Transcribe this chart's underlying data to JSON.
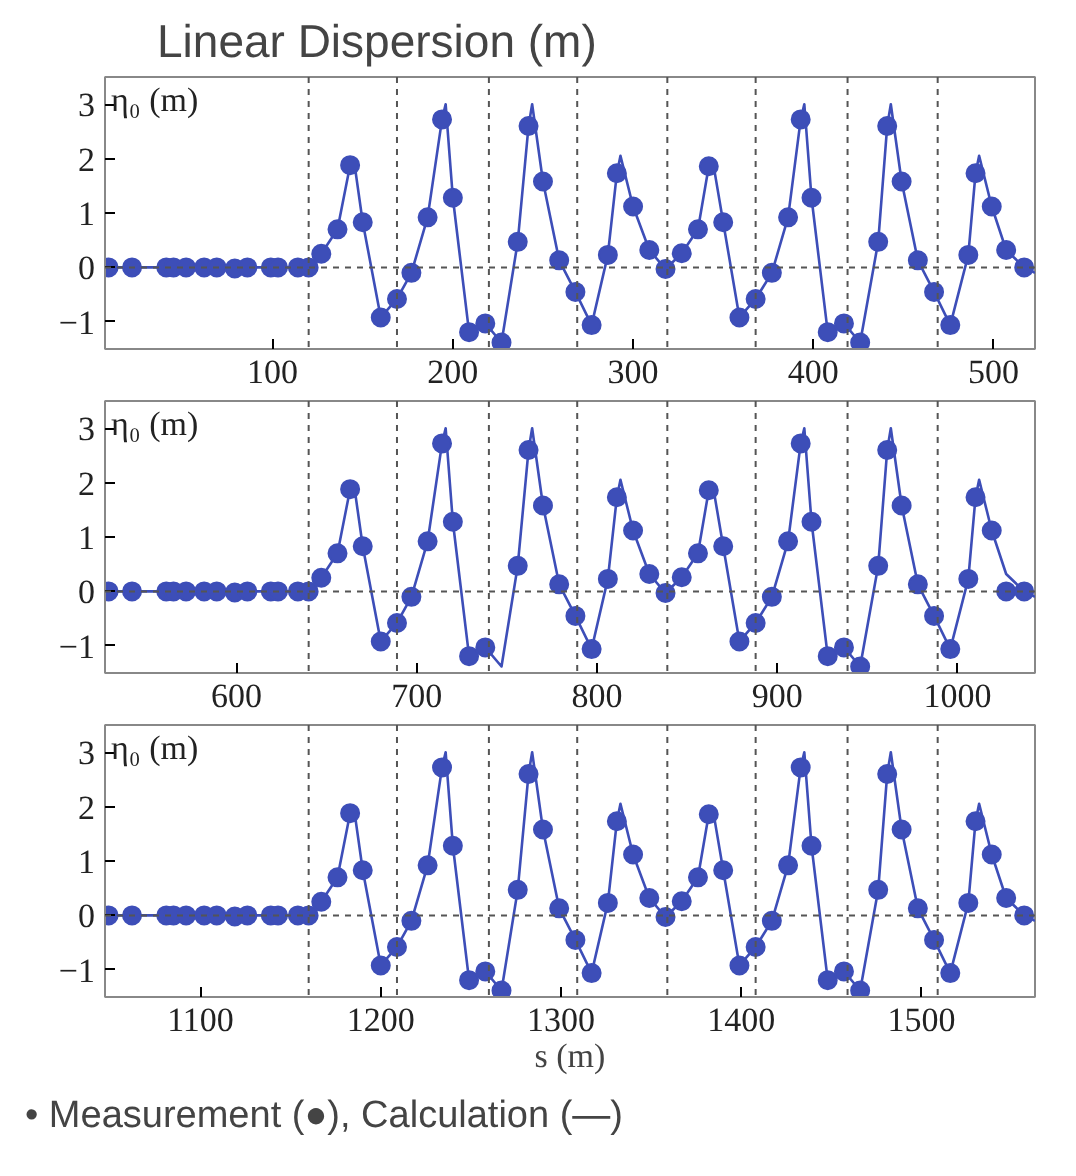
{
  "chart_data": [
    {
      "type": "scatter",
      "title": "Linear Dispersion (m)",
      "ylabel": "η₀ (m)",
      "xlim": [
        7,
        523
      ],
      "xticks": [
        100,
        200,
        300,
        400,
        500
      ],
      "ylim": [
        -1.5,
        3.5
      ],
      "yticks": [
        -1,
        0,
        1,
        2,
        3
      ],
      "ref_lines": [
        {
          "axis": "y",
          "value": 0,
          "line_style": "dashed",
          "color": "#555555"
        },
        {
          "axis": "x",
          "value": 120,
          "line_style": "dashed",
          "color": "#555555"
        },
        {
          "axis": "x",
          "value": 169,
          "line_style": "dashed",
          "color": "#555555"
        },
        {
          "axis": "x",
          "value": 220,
          "line_style": "dashed",
          "color": "#555555"
        },
        {
          "axis": "x",
          "value": 269,
          "line_style": "dashed",
          "color": "#555555"
        },
        {
          "axis": "x",
          "value": 319,
          "line_style": "dashed",
          "color": "#555555"
        },
        {
          "axis": "x",
          "value": 368,
          "line_style": "dashed",
          "color": "#555555"
        },
        {
          "axis": "x",
          "value": 419,
          "line_style": "dashed",
          "color": "#555555"
        },
        {
          "axis": "x",
          "value": 469,
          "line_style": "dashed",
          "color": "#555555"
        }
      ],
      "series": [
        {
          "type": "line",
          "color": "#3d4eb8",
          "x": [
            7,
            120,
            127,
            136,
            143,
            145,
            150,
            160,
            169,
            177,
            186,
            194,
            196,
            200,
            209,
            218,
            227,
            236,
            242,
            244,
            250,
            259,
            268,
            277,
            286,
            291,
            293,
            300,
            309,
            318,
            327,
            336,
            342,
            344,
            350,
            359,
            368,
            377,
            386,
            393,
            395,
            399,
            408,
            417,
            426,
            436,
            441,
            443,
            449,
            458,
            467,
            476,
            486,
            490,
            492,
            499,
            507,
            517,
            523
          ],
          "values": [
            0,
            0,
            0.25,
            0.7,
            1.88,
            2.0,
            0.83,
            -0.92,
            -0.58,
            -0.1,
            0.92,
            2.72,
            3.0,
            1.28,
            -1.19,
            -1.03,
            -1.38,
            0.47,
            2.6,
            3.0,
            1.58,
            0.13,
            -0.45,
            -1.06,
            0.23,
            1.73,
            2.05,
            1.12,
            0.32,
            -0.03,
            0.26,
            0.7,
            1.86,
            2.0,
            0.83,
            -0.92,
            -0.58,
            -0.1,
            0.92,
            2.72,
            3.0,
            1.28,
            -1.19,
            -1.03,
            -1.38,
            0.47,
            2.6,
            3.0,
            1.58,
            0.13,
            -0.45,
            -1.06,
            0.23,
            1.73,
            2.05,
            1.12,
            0.32,
            0,
            -0.1
          ]
        },
        {
          "marker": "circle",
          "color": "#3d4eb8",
          "x": [
            9,
            22,
            41,
            45,
            52,
            62,
            69,
            79,
            86,
            99,
            103,
            114,
            120,
            127,
            136,
            143,
            150,
            160,
            169,
            177,
            186,
            194,
            200,
            209,
            218,
            227,
            236,
            242,
            250,
            259,
            268,
            277,
            286,
            291,
            300,
            309,
            318,
            327,
            336,
            342,
            350,
            359,
            368,
            377,
            386,
            393,
            399,
            408,
            417,
            426,
            436,
            441,
            449,
            458,
            467,
            476,
            486,
            490,
            499,
            507,
            517
          ],
          "values": [
            0,
            0,
            0,
            0,
            0,
            0,
            0,
            -0.02,
            0,
            0,
            0,
            0,
            0,
            0.25,
            0.7,
            1.88,
            0.83,
            -0.92,
            -0.58,
            -0.1,
            0.92,
            2.72,
            1.28,
            -1.19,
            -1.03,
            -1.38,
            0.47,
            2.6,
            1.58,
            0.13,
            -0.45,
            -1.06,
            0.23,
            1.73,
            1.12,
            0.32,
            -0.03,
            0.26,
            0.7,
            1.86,
            0.83,
            -0.92,
            -0.58,
            -0.1,
            0.92,
            2.72,
            1.28,
            -1.19,
            -1.03,
            -1.38,
            0.47,
            2.6,
            1.58,
            0.13,
            -0.45,
            -1.06,
            0.23,
            1.73,
            1.12,
            0.32,
            0
          ]
        }
      ]
    },
    {
      "type": "scatter",
      "ylabel": "η₀ (m)",
      "xlim": [
        527,
        1043
      ],
      "xticks": [
        600,
        700,
        800,
        900,
        1000
      ],
      "ylim": [
        -1.5,
        3.5
      ],
      "yticks": [
        -1,
        0,
        1,
        2,
        3
      ],
      "ref_lines": [
        {
          "axis": "y",
          "value": 0,
          "line_style": "dashed",
          "color": "#555555"
        },
        {
          "axis": "x",
          "value": 640,
          "line_style": "dashed",
          "color": "#555555"
        },
        {
          "axis": "x",
          "value": 689,
          "line_style": "dashed",
          "color": "#555555"
        },
        {
          "axis": "x",
          "value": 740,
          "line_style": "dashed",
          "color": "#555555"
        },
        {
          "axis": "x",
          "value": 789,
          "line_style": "dashed",
          "color": "#555555"
        },
        {
          "axis": "x",
          "value": 839,
          "line_style": "dashed",
          "color": "#555555"
        },
        {
          "axis": "x",
          "value": 888,
          "line_style": "dashed",
          "color": "#555555"
        },
        {
          "axis": "x",
          "value": 939,
          "line_style": "dashed",
          "color": "#555555"
        },
        {
          "axis": "x",
          "value": 989,
          "line_style": "dashed",
          "color": "#555555"
        }
      ],
      "series": [
        {
          "type": "line",
          "color": "#3d4eb8",
          "x": [
            527,
            640,
            647,
            656,
            663,
            665,
            670,
            680,
            689,
            697,
            706,
            714,
            716,
            720,
            729,
            738,
            747,
            756,
            762,
            764,
            770,
            779,
            788,
            797,
            806,
            811,
            813,
            820,
            829,
            838,
            847,
            856,
            862,
            864,
            870,
            879,
            888,
            897,
            906,
            913,
            915,
            919,
            928,
            937,
            946,
            956,
            961,
            963,
            969,
            978,
            987,
            996,
            1006,
            1010,
            1012,
            1019,
            1027,
            1037,
            1043
          ],
          "values": [
            0,
            0,
            0.25,
            0.7,
            1.88,
            2.0,
            0.83,
            -0.92,
            -0.58,
            -0.1,
            0.92,
            2.72,
            3.0,
            1.28,
            -1.19,
            -1.03,
            -1.38,
            0.47,
            2.6,
            3.0,
            1.58,
            0.13,
            -0.45,
            -1.06,
            0.23,
            1.73,
            2.05,
            1.12,
            0.32,
            -0.03,
            0.26,
            0.7,
            1.86,
            2.0,
            0.83,
            -0.92,
            -0.58,
            -0.1,
            0.92,
            2.72,
            3.0,
            1.28,
            -1.19,
            -1.03,
            -1.38,
            0.47,
            2.6,
            3.0,
            1.58,
            0.13,
            -0.45,
            -1.06,
            0.23,
            1.73,
            2.05,
            1.12,
            0.32,
            0,
            -0.1
          ]
        },
        {
          "marker": "circle",
          "color": "#3d4eb8",
          "x": [
            529,
            542,
            561,
            565,
            572,
            582,
            589,
            599,
            606,
            619,
            623,
            634,
            640,
            647,
            656,
            663,
            670,
            680,
            689,
            697,
            706,
            714,
            720,
            729,
            738,
            756,
            762,
            770,
            779,
            788,
            797,
            806,
            811,
            820,
            829,
            838,
            847,
            856,
            862,
            870,
            879,
            888,
            897,
            906,
            913,
            919,
            928,
            937,
            946,
            956,
            961,
            969,
            978,
            987,
            996,
            1006,
            1010,
            1019,
            1027,
            1037
          ],
          "values": [
            0,
            0,
            0,
            0,
            0,
            0,
            0,
            -0.02,
            0,
            0,
            0,
            0,
            0,
            0.25,
            0.7,
            1.88,
            0.83,
            -0.92,
            -0.58,
            -0.1,
            0.92,
            2.72,
            1.28,
            -1.19,
            -1.03,
            0.47,
            2.6,
            1.58,
            0.13,
            -0.45,
            -1.06,
            0.23,
            1.73,
            1.12,
            0.32,
            -0.03,
            0.26,
            0.7,
            1.86,
            0.83,
            -0.92,
            -0.58,
            -0.1,
            0.92,
            2.72,
            1.28,
            -1.19,
            -1.03,
            -1.38,
            0.47,
            2.6,
            1.58,
            0.13,
            -0.45,
            -1.06,
            0.23,
            1.73,
            1.12,
            0,
            0
          ]
        }
      ]
    },
    {
      "type": "scatter",
      "ylabel": "η₀ (m)",
      "xlabel": "s (m)",
      "annotations": [
        "•        Measurement (●), Calculation (—)"
      ],
      "xlim": [
        1047,
        1563
      ],
      "xticks": [
        1100,
        1200,
        1300,
        1400,
        1500
      ],
      "ylim": [
        -1.5,
        3.5
      ],
      "yticks": [
        -1,
        0,
        1,
        2,
        3
      ],
      "ref_lines": [
        {
          "axis": "y",
          "value": 0,
          "line_style": "dashed",
          "color": "#555555"
        },
        {
          "axis": "x",
          "value": 1160,
          "line_style": "dashed",
          "color": "#555555"
        },
        {
          "axis": "x",
          "value": 1209,
          "line_style": "dashed",
          "color": "#555555"
        },
        {
          "axis": "x",
          "value": 1260,
          "line_style": "dashed",
          "color": "#555555"
        },
        {
          "axis": "x",
          "value": 1309,
          "line_style": "dashed",
          "color": "#555555"
        },
        {
          "axis": "x",
          "value": 1359,
          "line_style": "dashed",
          "color": "#555555"
        },
        {
          "axis": "x",
          "value": 1408,
          "line_style": "dashed",
          "color": "#555555"
        },
        {
          "axis": "x",
          "value": 1459,
          "line_style": "dashed",
          "color": "#555555"
        },
        {
          "axis": "x",
          "value": 1509,
          "line_style": "dashed",
          "color": "#555555"
        }
      ],
      "series": [
        {
          "type": "line",
          "color": "#3d4eb8",
          "x": [
            1047,
            1160,
            1167,
            1176,
            1183,
            1185,
            1190,
            1200,
            1209,
            1217,
            1226,
            1234,
            1236,
            1240,
            1249,
            1258,
            1267,
            1276,
            1282,
            1284,
            1290,
            1299,
            1308,
            1317,
            1326,
            1331,
            1333,
            1340,
            1349,
            1358,
            1367,
            1376,
            1382,
            1384,
            1390,
            1399,
            1408,
            1417,
            1426,
            1433,
            1435,
            1439,
            1448,
            1457,
            1466,
            1476,
            1481,
            1483,
            1489,
            1498,
            1507,
            1516,
            1526,
            1530,
            1532,
            1539,
            1547,
            1557,
            1563
          ],
          "values": [
            0,
            0,
            0.25,
            0.7,
            1.88,
            2.0,
            0.83,
            -0.92,
            -0.58,
            -0.1,
            0.92,
            2.72,
            3.0,
            1.28,
            -1.19,
            -1.03,
            -1.38,
            0.47,
            2.6,
            3.0,
            1.58,
            0.13,
            -0.45,
            -1.06,
            0.23,
            1.73,
            2.05,
            1.12,
            0.32,
            -0.03,
            0.26,
            0.7,
            1.86,
            2.0,
            0.83,
            -0.92,
            -0.58,
            -0.1,
            0.92,
            2.72,
            3.0,
            1.28,
            -1.19,
            -1.03,
            -1.38,
            0.47,
            2.6,
            3.0,
            1.58,
            0.13,
            -0.45,
            -1.06,
            0.23,
            1.73,
            2.05,
            1.12,
            0.32,
            0,
            -0.1
          ]
        },
        {
          "marker": "circle",
          "color": "#3d4eb8",
          "x": [
            1049,
            1062,
            1081,
            1085,
            1092,
            1102,
            1109,
            1119,
            1126,
            1139,
            1143,
            1154,
            1160,
            1167,
            1176,
            1183,
            1190,
            1200,
            1209,
            1217,
            1226,
            1234,
            1240,
            1249,
            1258,
            1267,
            1276,
            1282,
            1290,
            1299,
            1308,
            1317,
            1326,
            1331,
            1340,
            1349,
            1358,
            1367,
            1376,
            1382,
            1390,
            1399,
            1408,
            1417,
            1426,
            1433,
            1439,
            1448,
            1457,
            1466,
            1476,
            1481,
            1489,
            1498,
            1507,
            1516,
            1526,
            1530,
            1539,
            1547,
            1557
          ],
          "values": [
            0,
            0,
            0,
            0,
            0,
            0,
            0,
            -0.02,
            0,
            0,
            0,
            0,
            0,
            0.25,
            0.7,
            1.88,
            0.83,
            -0.92,
            -0.58,
            -0.1,
            0.92,
            2.72,
            1.28,
            -1.19,
            -1.03,
            -1.38,
            0.47,
            2.6,
            1.58,
            0.13,
            -0.45,
            -1.06,
            0.23,
            1.73,
            1.12,
            0.32,
            -0.03,
            0.26,
            0.7,
            1.86,
            0.83,
            -0.92,
            -0.58,
            -0.1,
            0.92,
            2.72,
            1.28,
            -1.19,
            -1.03,
            -1.38,
            0.47,
            2.6,
            1.58,
            0.13,
            -0.45,
            -1.06,
            0.23,
            1.73,
            1.12,
            0.32,
            0
          ]
        }
      ]
    }
  ]
}
